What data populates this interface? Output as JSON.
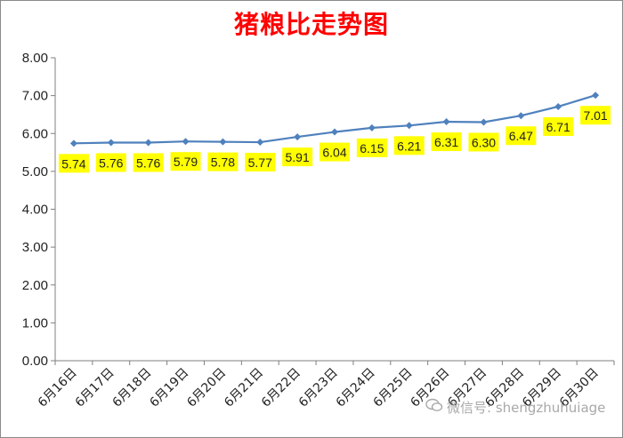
{
  "chart_data": {
    "type": "line",
    "title": "猪粮比走势图",
    "categories": [
      "6月16日",
      "6月17日",
      "6月18日",
      "6月19日",
      "6月20日",
      "6月21日",
      "6月22日",
      "6月23日",
      "6月24日",
      "6月25日",
      "6月26日",
      "6月27日",
      "6月28日",
      "6月29日",
      "6月30日"
    ],
    "values": [
      5.74,
      5.76,
      5.76,
      5.79,
      5.78,
      5.77,
      5.91,
      6.04,
      6.15,
      6.21,
      6.31,
      6.3,
      6.47,
      6.71,
      7.01
    ],
    "value_labels": [
      "5.74",
      "5.76",
      "5.76",
      "5.79",
      "5.78",
      "5.77",
      "5.91",
      "6.04",
      "6.15",
      "6.21",
      "6.31",
      "6.30",
      "6.47",
      "6.71",
      "7.01"
    ],
    "y_ticks": [
      "0.00",
      "1.00",
      "2.00",
      "3.00",
      "4.00",
      "5.00",
      "6.00",
      "7.00",
      "8.00"
    ],
    "ylim": [
      0,
      8
    ],
    "grid": false,
    "legend": "none",
    "colors": {
      "line": "#4f81bd",
      "marker": "#4f81bd",
      "label_bg": "#ffff00",
      "title": "#ff0000"
    }
  },
  "watermark": {
    "icon": "wechat-icon",
    "text": "微信号: shengzhuhuiage"
  }
}
